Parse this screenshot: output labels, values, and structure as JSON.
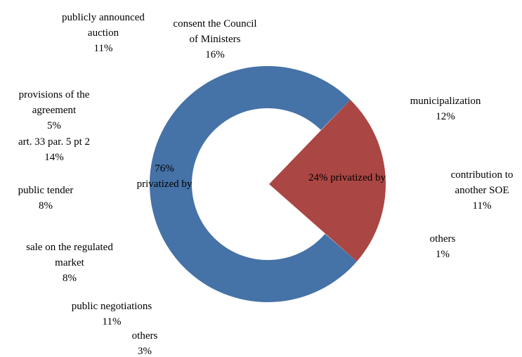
{
  "chart_data": {
    "type": "pie",
    "subtype": "exploded-doughnut",
    "colors": {
      "privatized_by": "#4572A7",
      "other_share": "#AA4643",
      "text": "#000000",
      "background": "#FFFFFF"
    },
    "slices": [
      {
        "label_lines": [
          "76%",
          "privatized by"
        ],
        "value": 76,
        "color": "#4572A7"
      },
      {
        "label_lines": [
          "24% privatized by"
        ],
        "value": 24,
        "color": "#AA4643"
      }
    ],
    "labels": [
      {
        "group": "privatized_by",
        "lines": [
          "publicly announced",
          "auction",
          "11%"
        ],
        "value": 11
      },
      {
        "group": "privatized_by",
        "lines": [
          "consent the Council",
          "of Ministers",
          "16%"
        ],
        "value": 16
      },
      {
        "group": "privatized_by",
        "lines": [
          "provisions of the",
          "agreement",
          "5%"
        ],
        "value": 5
      },
      {
        "group": "privatized_by",
        "lines": [
          "art. 33 par. 5 pt 2",
          "14%"
        ],
        "value": 14
      },
      {
        "group": "privatized_by",
        "lines": [
          "public tender",
          "8%"
        ],
        "value": 8
      },
      {
        "group": "privatized_by",
        "lines": [
          "sale on the regulated",
          "market",
          "8%"
        ],
        "value": 8
      },
      {
        "group": "privatized_by",
        "lines": [
          "public negotiations",
          "11%"
        ],
        "value": 11
      },
      {
        "group": "privatized_by",
        "lines": [
          "others",
          "3%"
        ],
        "value": 3
      },
      {
        "group": "other",
        "lines": [
          "municipalization",
          "12%"
        ],
        "value": 12
      },
      {
        "group": "other",
        "lines": [
          "contribution to",
          "another SOE",
          "11%"
        ],
        "value": 11
      },
      {
        "group": "other",
        "lines": [
          "others",
          "1%"
        ],
        "value": 1
      }
    ]
  }
}
